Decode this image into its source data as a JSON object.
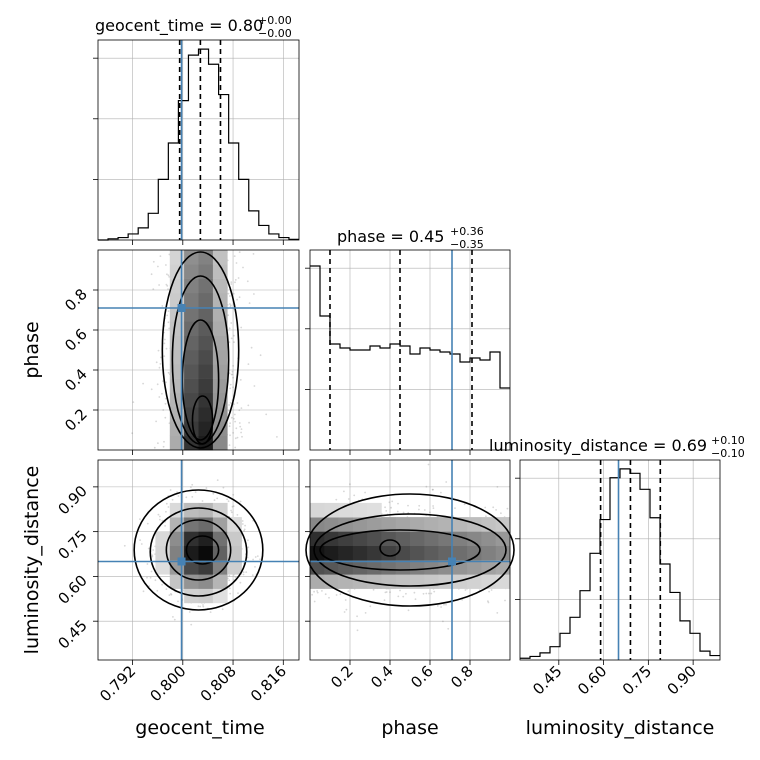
{
  "figure": {
    "type": "corner-plot"
  },
  "colors": {
    "truth": "#4682b4",
    "hist": "#000000",
    "grid": "#b0b0b0",
    "scatter": "#8c8c8c"
  },
  "titles": {
    "geocent_time": {
      "text": "geocent_time = 0.80",
      "sup": "+0.00",
      "sub": "−0.00"
    },
    "phase": {
      "text": "phase = 0.45",
      "sup": "+0.36",
      "sub": "−0.35"
    },
    "luminosity_distance": {
      "text": "luminosity_distance = 0.69",
      "sup": "+0.10",
      "sub": "−0.10"
    }
  },
  "labels": {
    "geocent_time": "geocent_time",
    "phase": "phase",
    "luminosity_distance": "luminosity_distance"
  },
  "chart_data": {
    "type": "corner",
    "parameters": [
      "geocent_time",
      "phase",
      "luminosity_distance"
    ],
    "truths": {
      "geocent_time": 0.7998,
      "phase": 0.71,
      "luminosity_distance": 0.65
    },
    "quantiles": {
      "geocent_time": [
        0.7995,
        0.8028,
        0.806
      ],
      "phase": [
        0.1,
        0.45,
        0.81
      ],
      "luminosity_distance": [
        0.59,
        0.69,
        0.79
      ]
    },
    "ranges": {
      "geocent_time": [
        0.7865,
        0.8185
      ],
      "phase": [
        0.0,
        1.0
      ],
      "luminosity_distance": [
        0.32,
        0.99
      ]
    },
    "ticks": {
      "geocent_time": [
        "0.792",
        "0.800",
        "0.808",
        "0.816"
      ],
      "phase": [
        "0.2",
        "0.4",
        "0.6",
        "0.8"
      ],
      "luminosity_distance": [
        "0.45",
        "0.60",
        "0.75",
        "0.90"
      ]
    },
    "histograms": {
      "geocent_time": {
        "edges_start": 0.7865,
        "bin_width": 0.0016,
        "counts": [
          0,
          2,
          4,
          10,
          20,
          44,
          100,
          160,
          230,
          305,
          315,
          290,
          240,
          160,
          100,
          48,
          24,
          10,
          4,
          1
        ],
        "ymax": 330
      },
      "phase": {
        "edges_start": 0.0,
        "bin_width": 0.05,
        "counts": [
          0.92,
          0.67,
          0.53,
          0.51,
          0.5,
          0.5,
          0.52,
          0.51,
          0.53,
          0.52,
          0.48,
          0.51,
          0.5,
          0.49,
          0.48,
          0.44,
          0.46,
          0.45,
          0.49,
          0.31
        ],
        "ymax": 1.0
      },
      "luminosity_distance": {
        "edges_start": 0.32,
        "bin_width": 0.0335,
        "counts": [
          2,
          4,
          8,
          15,
          30,
          48,
          78,
          120,
          158,
          205,
          215,
          210,
          192,
          160,
          108,
          76,
          44,
          30,
          10,
          5
        ],
        "ymax": 225
      }
    }
  }
}
